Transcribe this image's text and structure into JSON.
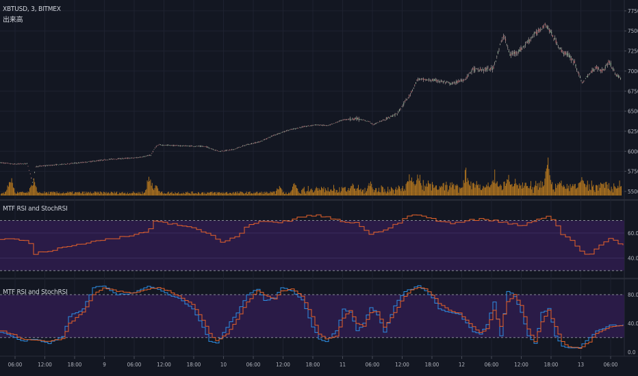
{
  "header": {
    "symbol": "XBTUSD, 3, BITMEX",
    "subtitle": "出来高"
  },
  "panes": [
    {
      "title": "MTF RSI and StochRSI"
    },
    {
      "title": "MTF RSI and StochRSI"
    }
  ],
  "colors": {
    "background": "#131722",
    "band_fill": "#2a1b47",
    "rsi_line": "#e8632a",
    "stoch_k": "#2e8fe6",
    "stoch_d": "#e8632a",
    "volume": "#c9821e",
    "candles": "#c7b6b3",
    "grid": "#1e2230",
    "dashed": "#8a8d99"
  },
  "chart_data": [
    {
      "type": "line",
      "name": "price",
      "y_ticks": [
        "7750.0",
        "7500.0",
        "7250.0",
        "7000.0",
        "6750.0",
        "6500.0",
        "6250.0",
        "6000.0",
        "5750.0",
        "5500.0"
      ],
      "ylim": [
        5500,
        7800
      ],
      "x": [
        0,
        20,
        40,
        48,
        52,
        80,
        120,
        160,
        200,
        220,
        228,
        232,
        260,
        300,
        320,
        340,
        360,
        380,
        400,
        420,
        440,
        460,
        480,
        500,
        520,
        540,
        545,
        560,
        580,
        600,
        610,
        620,
        640,
        660,
        680,
        690,
        700,
        720,
        730,
        736,
        745,
        760,
        780,
        790,
        795,
        800,
        810,
        820,
        830,
        840,
        850,
        860,
        870,
        880,
        890,
        900,
        910
      ],
      "values": [
        5860,
        5840,
        5845,
        5600,
        5810,
        5830,
        5860,
        5900,
        5920,
        5950,
        6060,
        6080,
        6070,
        6060,
        6000,
        6020,
        6080,
        6120,
        6200,
        6260,
        6300,
        6330,
        6320,
        6390,
        6410,
        6370,
        6330,
        6390,
        6470,
        6720,
        6900,
        6890,
        6880,
        6840,
        6900,
        7020,
        7010,
        7030,
        7300,
        7450,
        7200,
        7260,
        7450,
        7520,
        7580,
        7550,
        7400,
        7250,
        7200,
        7100,
        6850,
        6950,
        7050,
        7000,
        7120,
        6950,
        6900
      ]
    },
    {
      "type": "bar",
      "name": "volume",
      "values": []
    },
    {
      "type": "line",
      "name": "MTF RSI",
      "title": "MTF RSI and StochRSI",
      "y_ticks": [
        "60.0",
        "40.0"
      ],
      "levels": [
        70,
        30
      ],
      "ylim": [
        25,
        85
      ],
      "x": [
        0,
        10,
        20,
        40,
        48,
        60,
        80,
        100,
        120,
        140,
        160,
        180,
        200,
        215,
        225,
        240,
        260,
        280,
        300,
        310,
        320,
        330,
        345,
        360,
        380,
        400,
        420,
        440,
        460,
        480,
        500,
        520,
        540,
        545,
        560,
        580,
        600,
        620,
        640,
        660,
        680,
        700,
        720,
        740,
        760,
        780,
        800,
        810,
        820,
        830,
        840,
        850,
        860,
        870,
        880,
        890,
        900,
        910
      ],
      "values": [
        55,
        56,
        55,
        54,
        43,
        45,
        47,
        49,
        52,
        54,
        55,
        57,
        59,
        62,
        70,
        68,
        66,
        64,
        60,
        58,
        52,
        54,
        57,
        66,
        69,
        68,
        70,
        73,
        74,
        72,
        69,
        68,
        58,
        60,
        63,
        68,
        75,
        73,
        69,
        68,
        70,
        71,
        70,
        68,
        66,
        70,
        74,
        68,
        58,
        55,
        50,
        44,
        42,
        49,
        52,
        56,
        53,
        50
      ]
    },
    {
      "type": "line",
      "name": "MTF StochRSI",
      "title": "MTF RSI and StochRSI",
      "y_ticks": [
        "80.0",
        "40.0",
        "0.0"
      ],
      "levels": [
        80,
        20
      ],
      "ylim": [
        -5,
        100
      ],
      "series": [
        {
          "name": "K",
          "x": [
            0,
            20,
            30,
            50,
            70,
            90,
            100,
            120,
            135,
            150,
            170,
            190,
            200,
            215,
            230,
            245,
            260,
            280,
            295,
            305,
            315,
            330,
            345,
            360,
            375,
            385,
            400,
            410,
            425,
            440,
            455,
            465,
            475,
            490,
            500,
            510,
            520,
            530,
            540,
            550,
            560,
            575,
            590,
            600,
            610,
            620,
            630,
            640,
            655,
            670,
            690,
            700,
            710,
            720,
            730,
            740,
            750,
            760,
            770,
            780,
            790,
            800,
            810,
            820,
            830,
            845,
            860,
            870,
            880,
            890,
            900,
            910
          ],
          "values": [
            28,
            20,
            15,
            18,
            12,
            22,
            50,
            60,
            90,
            92,
            80,
            82,
            85,
            92,
            88,
            80,
            75,
            60,
            35,
            15,
            12,
            35,
            55,
            80,
            88,
            72,
            75,
            90,
            85,
            72,
            35,
            18,
            15,
            30,
            60,
            55,
            30,
            40,
            62,
            52,
            28,
            65,
            85,
            88,
            92,
            85,
            75,
            60,
            55,
            52,
            28,
            25,
            38,
            70,
            22,
            85,
            78,
            55,
            22,
            12,
            55,
            60,
            22,
            8,
            5,
            6,
            20,
            30,
            32,
            38,
            36,
            38
          ]
        },
        {
          "name": "D",
          "x": [
            0,
            20,
            30,
            50,
            70,
            90,
            100,
            120,
            135,
            150,
            170,
            190,
            200,
            215,
            230,
            245,
            260,
            280,
            295,
            305,
            315,
            330,
            345,
            360,
            375,
            385,
            400,
            410,
            425,
            440,
            455,
            465,
            475,
            490,
            500,
            510,
            520,
            530,
            540,
            550,
            560,
            575,
            590,
            600,
            610,
            620,
            630,
            640,
            655,
            670,
            690,
            700,
            710,
            720,
            730,
            740,
            750,
            760,
            770,
            780,
            790,
            800,
            810,
            820,
            830,
            845,
            860,
            870,
            880,
            890,
            900,
            910
          ],
          "values": [
            30,
            24,
            18,
            16,
            15,
            18,
            40,
            55,
            80,
            90,
            85,
            82,
            83,
            88,
            90,
            85,
            78,
            66,
            45,
            25,
            15,
            25,
            45,
            70,
            85,
            80,
            74,
            85,
            88,
            78,
            50,
            25,
            18,
            22,
            48,
            58,
            40,
            35,
            55,
            56,
            35,
            55,
            78,
            86,
            90,
            88,
            80,
            68,
            58,
            54,
            35,
            27,
            32,
            58,
            35,
            70,
            80,
            65,
            32,
            15,
            42,
            58,
            35,
            14,
            7,
            5,
            14,
            26,
            30,
            35,
            37,
            37
          ]
        }
      ]
    }
  ],
  "x_ticks": [
    "06:00",
    "12:00",
    "18:00",
    "9",
    "06:00",
    "12:00",
    "18:00",
    "10",
    "06:00",
    "12:00",
    "18:00",
    "11",
    "06:00",
    "12:00",
    "18:00",
    "12",
    "06:00",
    "12:00",
    "18:00",
    "13",
    "06:00"
  ]
}
